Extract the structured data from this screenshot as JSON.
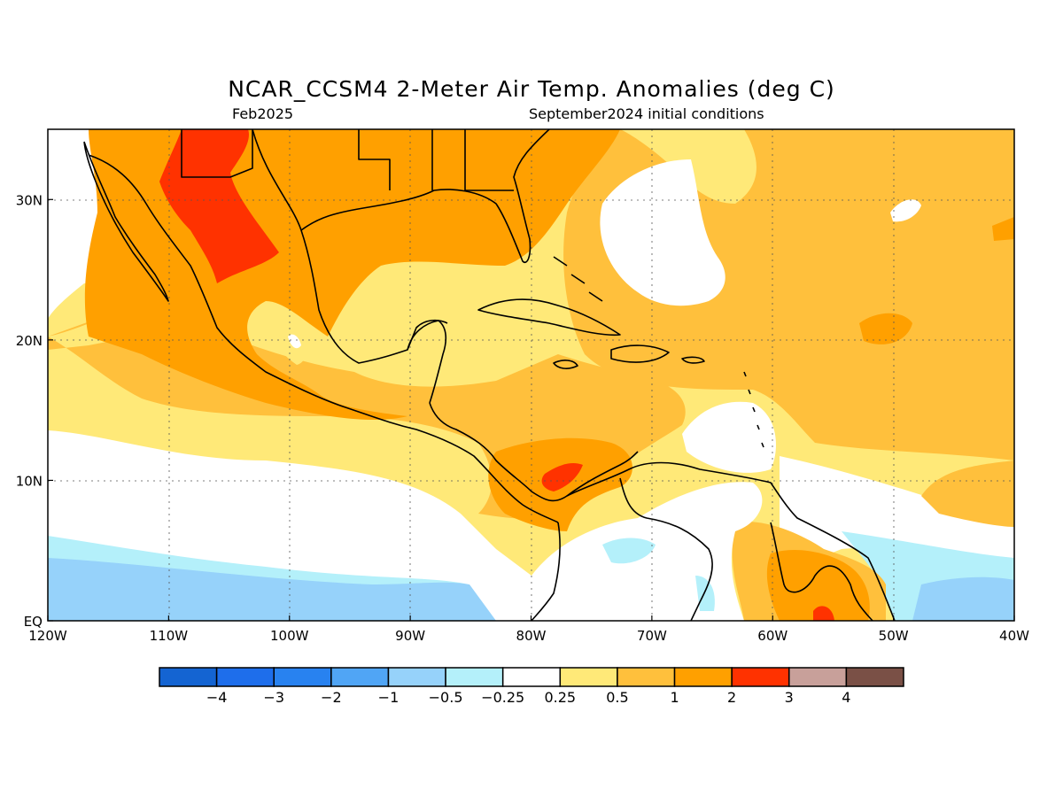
{
  "title": "NCAR_CCSM4 2-Meter Air Temp. Anomalies (deg C)",
  "subtitle_left": "Feb2025",
  "subtitle_right": "September2024 initial conditions",
  "map": {
    "type": "contour-map",
    "lon_range": [
      -120,
      -40
    ],
    "lat_range": [
      0,
      35
    ],
    "grid": true,
    "lon_ticks": [
      {
        "value": -120,
        "label": "120W"
      },
      {
        "value": -110,
        "label": "110W"
      },
      {
        "value": -100,
        "label": "100W"
      },
      {
        "value": -90,
        "label": "90W"
      },
      {
        "value": -80,
        "label": "80W"
      },
      {
        "value": -70,
        "label": "70W"
      },
      {
        "value": -60,
        "label": "60W"
      },
      {
        "value": -50,
        "label": "50W"
      },
      {
        "value": -40,
        "label": "40W"
      }
    ],
    "lat_ticks": [
      {
        "value": 0,
        "label": "EQ"
      },
      {
        "value": 10,
        "label": "10N"
      },
      {
        "value": 20,
        "label": "20N"
      },
      {
        "value": 30,
        "label": "30N"
      }
    ]
  },
  "colorbar": {
    "colors": [
      "#1464d2",
      "#1e6eeb",
      "#2882f0",
      "#50a5f5",
      "#96d2fa",
      "#b4f0fa",
      "#ffffff",
      "#ffe978",
      "#ffc03c",
      "#ffa000",
      "#ff3200",
      "#c8a09a",
      "#7a5046"
    ],
    "labels": [
      "−4",
      "−3",
      "−2",
      "−1",
      "−0.5",
      "−0.25",
      "0.25",
      "0.5",
      "1",
      "2",
      "3",
      "4"
    ]
  },
  "palette": {
    "cool1": "#96d2fa",
    "cool2": "#b4f0fa",
    "warm1": "#ffe978",
    "warm2": "#ffc03c",
    "warm3": "#ffa000",
    "warm4": "#ff3200"
  }
}
